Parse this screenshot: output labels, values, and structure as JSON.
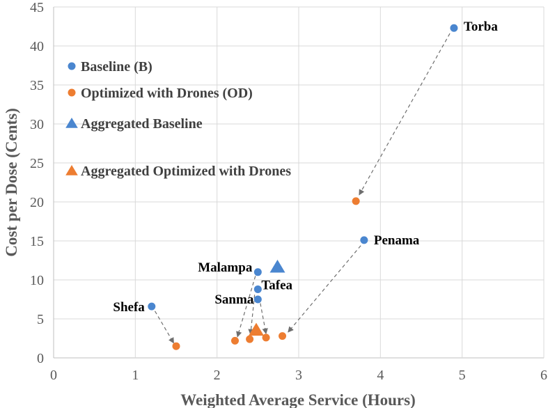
{
  "chart_data": {
    "type": "scatter",
    "title": "",
    "xlabel": "Weighted Average Service (Hours)",
    "ylabel": "Cost per Dose (Cents)",
    "xlim": [
      0,
      6
    ],
    "ylim": [
      0,
      45
    ],
    "xticks": [
      0,
      1,
      2,
      3,
      4,
      5,
      6
    ],
    "yticks": [
      0,
      5,
      10,
      15,
      20,
      25,
      30,
      35,
      40,
      45
    ],
    "grid": "vertical and horizontal major gridlines",
    "legend_position": "top-left",
    "colors": {
      "blue": "#4a86cf",
      "orange": "#ed7d31",
      "arrow": "#6e6e6e"
    },
    "series": [
      {
        "name": "Baseline (B)",
        "marker": "circle",
        "color": "#4a86cf",
        "points": [
          {
            "label": "Torba",
            "x": 4.9,
            "y": 42.3
          },
          {
            "label": "Penama",
            "x": 3.8,
            "y": 15.1
          },
          {
            "label": "Malampa",
            "x": 2.5,
            "y": 11.0
          },
          {
            "label": "Tafea",
            "x": 2.5,
            "y": 8.8
          },
          {
            "label": "Sanma",
            "x": 2.5,
            "y": 7.5
          },
          {
            "label": "Shefa",
            "x": 1.2,
            "y": 6.6
          }
        ]
      },
      {
        "name": "Optimized with Drones (OD)",
        "marker": "circle",
        "color": "#ed7d31",
        "points": [
          {
            "x": 3.7,
            "y": 20.1
          },
          {
            "x": 2.8,
            "y": 2.8
          },
          {
            "x": 2.22,
            "y": 2.2
          },
          {
            "x": 2.4,
            "y": 2.4
          },
          {
            "x": 2.6,
            "y": 2.6
          },
          {
            "x": 1.5,
            "y": 1.5
          }
        ]
      },
      {
        "name": "Aggregated Baseline",
        "marker": "triangle",
        "color": "#4a86cf",
        "points": [
          {
            "x": 2.74,
            "y": 11.7
          }
        ]
      },
      {
        "name": "Aggregated Optimized with Drones",
        "marker": "triangle",
        "color": "#ed7d31",
        "points": [
          {
            "x": 2.48,
            "y": 3.6
          }
        ]
      }
    ],
    "arrows": [
      {
        "from": [
          4.85,
          41.6
        ],
        "to": [
          3.74,
          20.9
        ]
      },
      {
        "from": [
          3.76,
          14.4
        ],
        "to": [
          2.87,
          3.3
        ]
      },
      {
        "from": [
          2.47,
          10.5
        ],
        "to": [
          2.25,
          2.7
        ]
      },
      {
        "from": [
          2.46,
          8.1
        ],
        "to": [
          2.41,
          3.0
        ]
      },
      {
        "from": [
          2.53,
          7.0
        ],
        "to": [
          2.6,
          3.1
        ]
      },
      {
        "from": [
          1.24,
          6.0
        ],
        "to": [
          1.47,
          1.9
        ]
      }
    ]
  }
}
